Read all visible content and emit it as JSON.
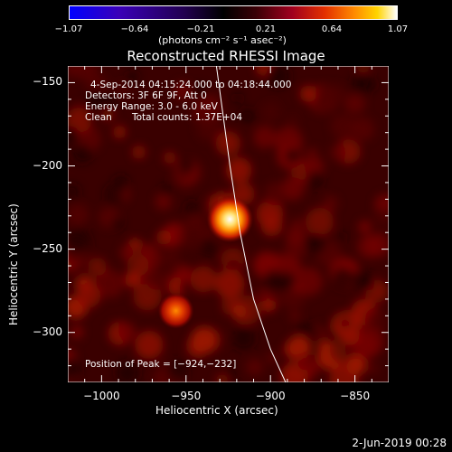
{
  "colorbar": {
    "ticks": [
      "−1.07",
      "−0.64",
      "−0.21",
      "0.21",
      "0.64",
      "1.07"
    ],
    "units": "(photons cm⁻² s⁻¹ asec⁻²)"
  },
  "chart_data": {
    "type": "heatmap",
    "title": "Reconstructed RHESSI Image",
    "xlabel": "Heliocentric X (arcsec)",
    "ylabel": "Heliocentric Y (arcsec)",
    "xlim": [
      -1020,
      -830
    ],
    "ylim": [
      -330,
      -140
    ],
    "x_ticks": [
      -1000,
      -950,
      -900,
      -850
    ],
    "y_ticks": [
      -150,
      -200,
      -250,
      -300
    ],
    "x_tick_labels": [
      "−1000",
      "−950",
      "−900",
      "−850"
    ],
    "y_tick_labels": [
      "−150",
      "−200",
      "−250",
      "−300"
    ],
    "colorbar_range": [
      -1.07,
      1.07
    ],
    "sources": [
      {
        "x": -924,
        "y": -232,
        "intensity": 1.07
      },
      {
        "x": -956,
        "y": -287,
        "intensity": 0.6
      }
    ],
    "limb_curve": [
      [
        -932,
        -140
      ],
      [
        -924,
        -200
      ],
      [
        -918,
        -240
      ],
      [
        -910,
        -280
      ],
      [
        -900,
        -310
      ],
      [
        -891,
        -330
      ]
    ],
    "peak_position": [
      -924,
      -232
    ],
    "annotations": {
      "time_range": "4-Sep-2014 04:15:24.000 to 04:18:44.000",
      "detectors": "Detectors: 3F 6F 9F, Att 0",
      "energy": "Energy Range: 3.0 - 6.0 keV",
      "method": "Clean",
      "counts": "Total counts: 1.37E+04",
      "peak": "Position of Peak = [−924,−232]"
    }
  },
  "datestamp": "2-Jun-2019 00:28"
}
